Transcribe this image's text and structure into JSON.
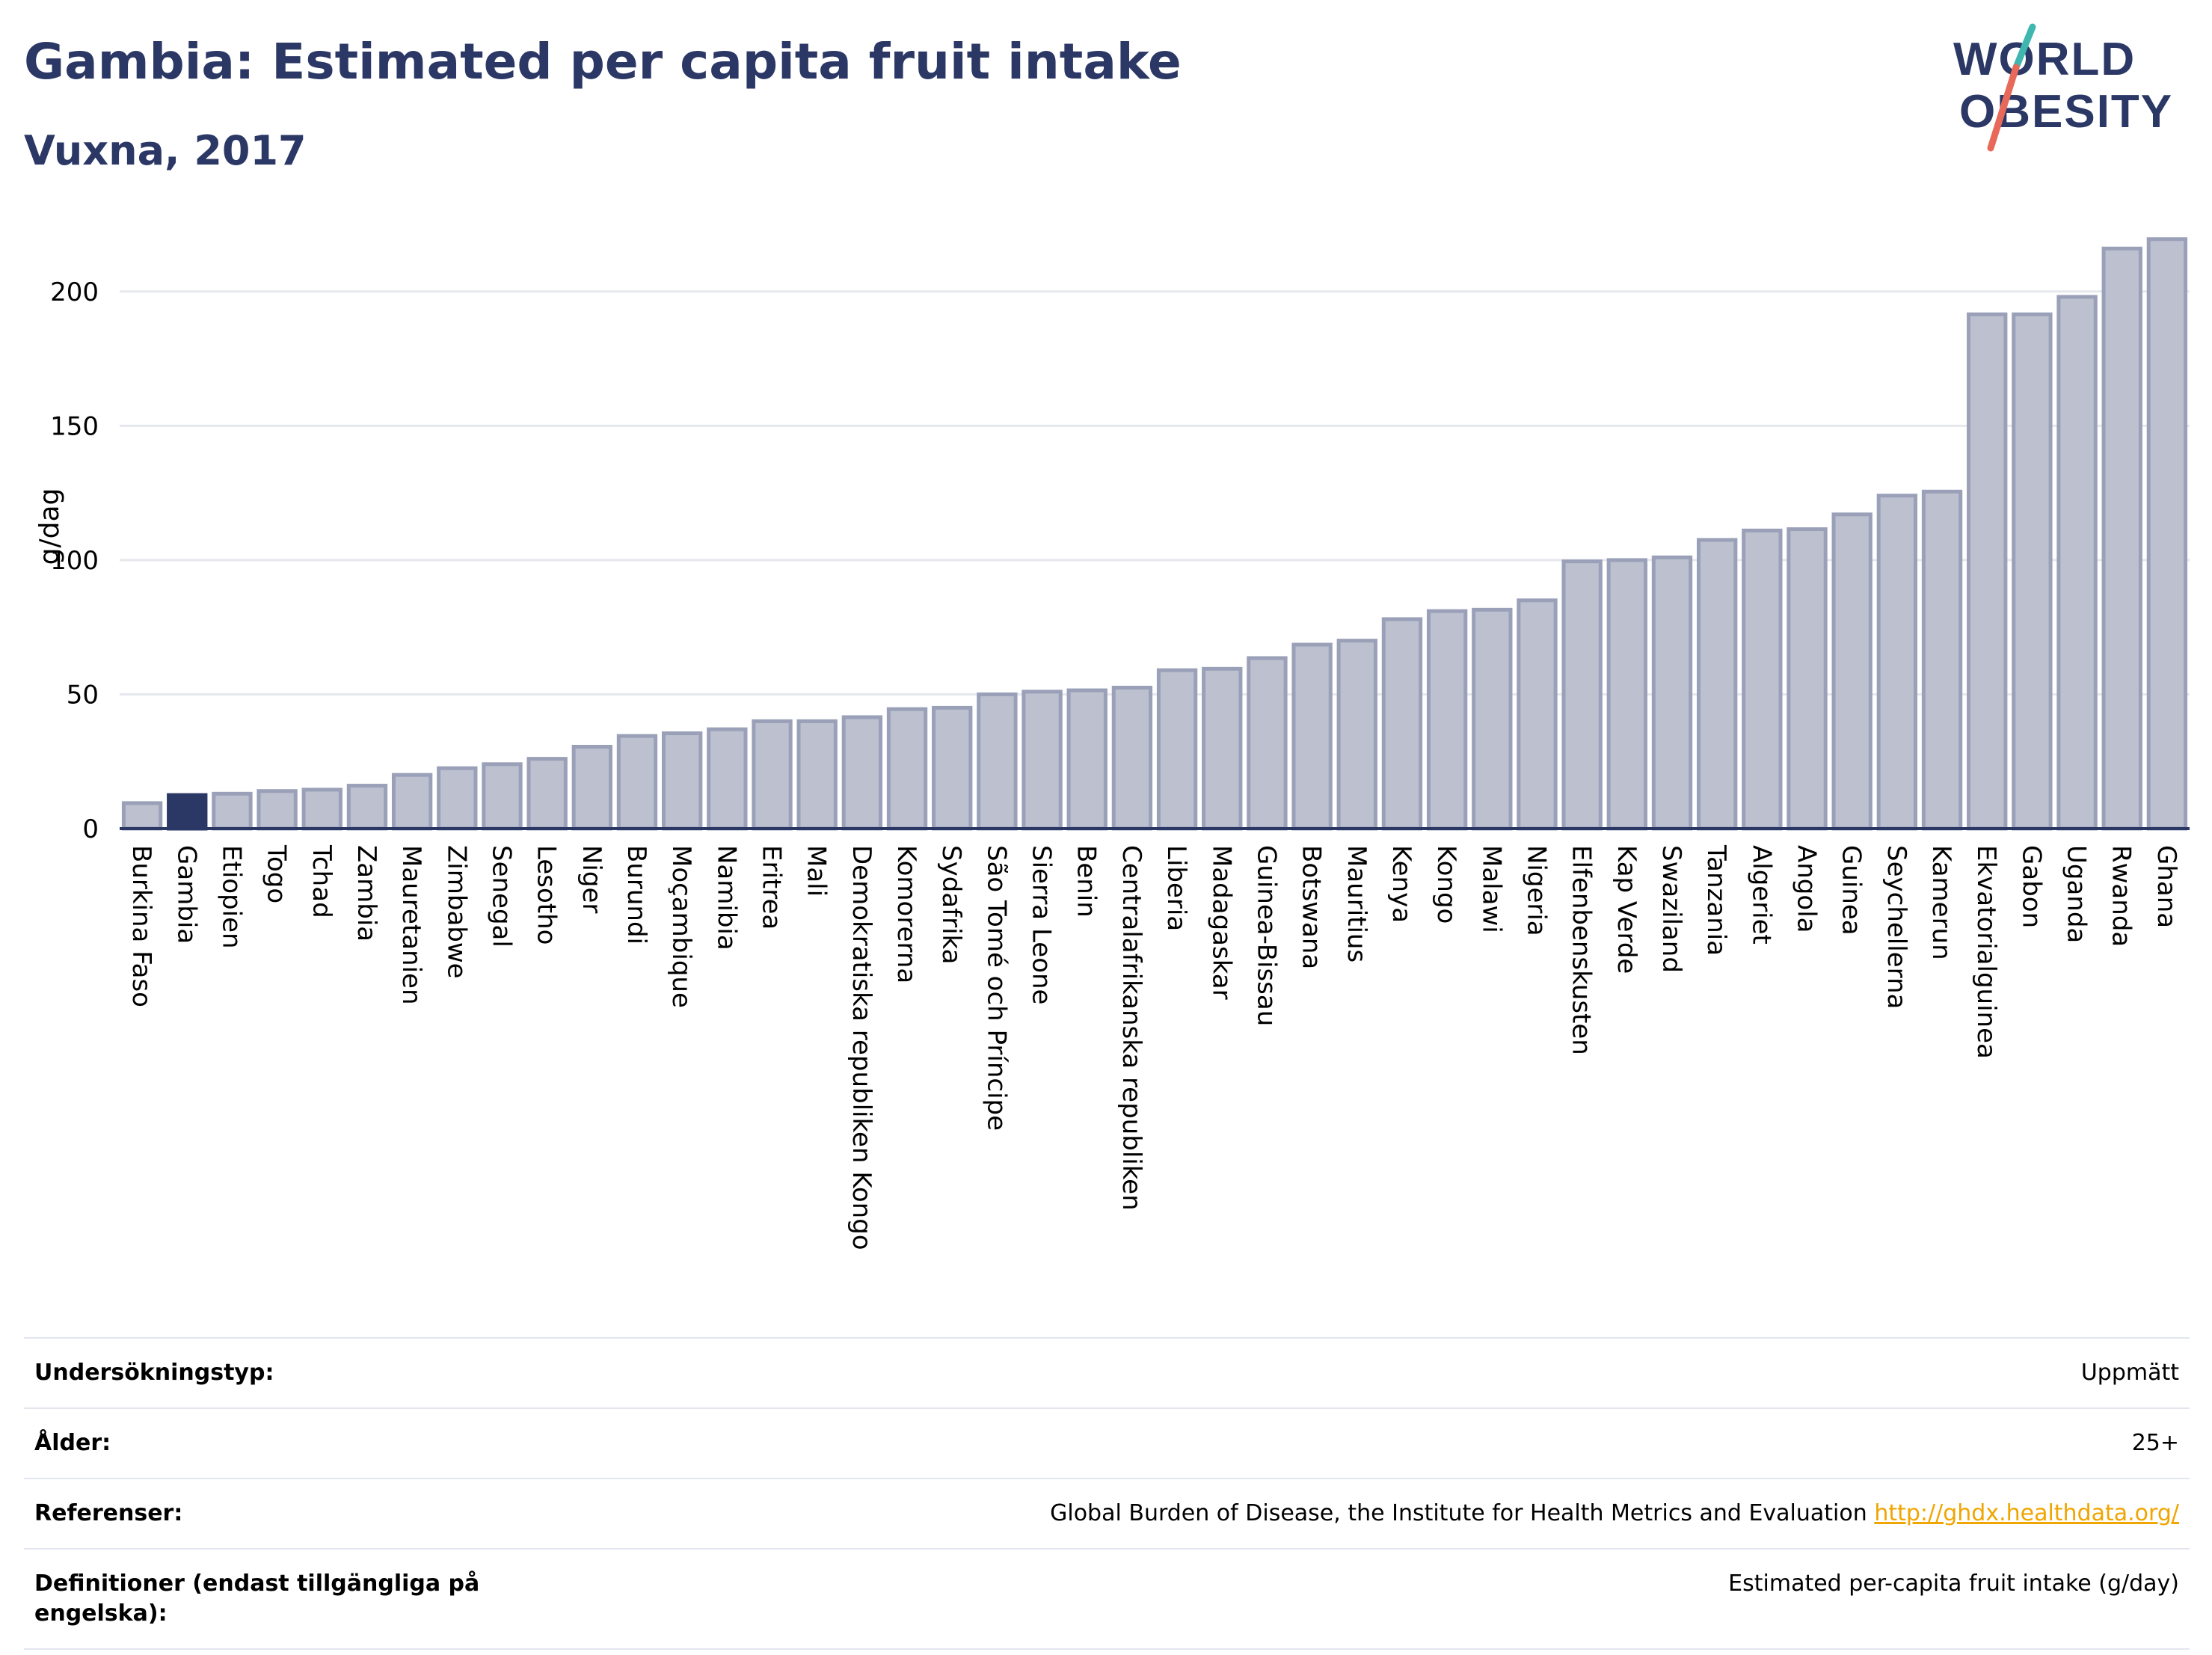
{
  "header": {
    "title": "Gambia: Estimated per capita fruit intake",
    "subtitle": "Vuxna, 2017"
  },
  "logo": {
    "line1": "WORLD",
    "line2": "OBESITY"
  },
  "colors": {
    "bar": "#bcc0cf",
    "bar_stroke": "#9aa0b8",
    "highlight": "#2b3765",
    "grid": "#e6e8ee",
    "axis": "#2b3765"
  },
  "chart_data": {
    "type": "bar",
    "ylabel": "g/dag",
    "ylim": [
      0,
      225
    ],
    "yticks": [
      0,
      50,
      100,
      150,
      200
    ],
    "grid": true,
    "highlight": "Gambia",
    "categories": [
      "Burkina Faso",
      "Gambia",
      "Etiopien",
      "Togo",
      "Tchad",
      "Zambia",
      "Mauretanien",
      "Zimbabwe",
      "Senegal",
      "Lesotho",
      "Niger",
      "Burundi",
      "Moçambique",
      "Namibia",
      "Eritrea",
      "Mali",
      "Demokratiska republiken Kongo",
      "Komorerna",
      "Sydafrika",
      "São Tomé och Príncipe",
      "Sierra Leone",
      "Benin",
      "Centralafrikanska republiken",
      "Liberia",
      "Madagaskar",
      "Guinea-Bissau",
      "Botswana",
      "Mauritius",
      "Kenya",
      "Kongo",
      "Malawi",
      "Nigeria",
      "Elfenbenskusten",
      "Kap Verde",
      "Swaziland",
      "Tanzania",
      "Algeriet",
      "Angola",
      "Guinea",
      "Seychellerna",
      "Kamerun",
      "Ekvatorialguinea",
      "Gabon",
      "Uganda",
      "Rwanda",
      "Ghana"
    ],
    "values": [
      9.5,
      12.5,
      13,
      14,
      14.5,
      16,
      20,
      22.5,
      24,
      26,
      30.5,
      34.5,
      35.5,
      37,
      40,
      40,
      41.5,
      44.5,
      45,
      50,
      51,
      51.5,
      52.5,
      59,
      59.5,
      63.5,
      68.5,
      70,
      78,
      81,
      81.5,
      85,
      99.5,
      100,
      101,
      107.5,
      111,
      111.5,
      117,
      124,
      125.5,
      191.5,
      191.5,
      198,
      216,
      219.5
    ]
  },
  "info": [
    {
      "label": "Undersökningstyp:",
      "value": "Uppmätt",
      "link": ""
    },
    {
      "label": "Ålder:",
      "value": "25+",
      "link": ""
    },
    {
      "label": "Referenser:",
      "value": "Global Burden of Disease, the Institute for Health Metrics and Evaluation",
      "link": "http://ghdx.healthdata.org/"
    },
    {
      "label": "Definitioner (endast tillgängliga på engelska):",
      "value": "Estimated per-capita fruit intake (g/day)",
      "link": ""
    }
  ]
}
